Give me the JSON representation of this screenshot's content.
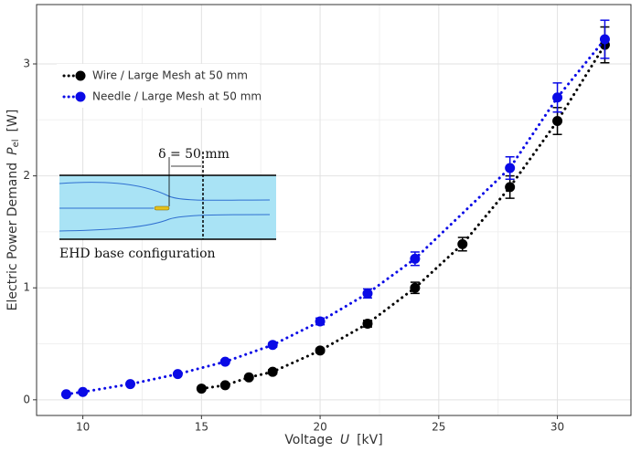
{
  "chart_data": {
    "type": "scatter",
    "xlabel": {
      "text": "Voltage",
      "symbol": "U",
      "unit": "[kV]"
    },
    "ylabel": {
      "text": "Electric Power Demand",
      "symbol": "P",
      "subscript": "el",
      "unit": "[W]"
    },
    "xlim": [
      8.05,
      33.1
    ],
    "ylim": [
      -0.14,
      3.53
    ],
    "xticks": [
      10,
      15,
      20,
      25,
      30
    ],
    "yticks": [
      0,
      1,
      2,
      3
    ],
    "grid": true,
    "legend": "upper-left",
    "series": [
      {
        "name": "Wire / Large Mesh at 50 mm",
        "color": "#000000",
        "x": [
          15,
          16,
          17,
          18,
          20,
          22,
          24,
          26,
          28,
          30,
          32
        ],
        "values": [
          0.1,
          0.13,
          0.2,
          0.25,
          0.44,
          0.68,
          1.0,
          1.39,
          1.9,
          2.49,
          3.17
        ],
        "errors": [
          0.01,
          0.01,
          0.015,
          0.02,
          0.02,
          0.03,
          0.05,
          0.06,
          0.1,
          0.12,
          0.16
        ]
      },
      {
        "name": "Needle / Large Mesh at 50 mm",
        "color": "#0a0ae6",
        "x": [
          9.3,
          10,
          12,
          14,
          16,
          18,
          20,
          22,
          24,
          28,
          30,
          32
        ],
        "values": [
          0.05,
          0.07,
          0.14,
          0.23,
          0.34,
          0.49,
          0.7,
          0.95,
          1.26,
          2.07,
          2.7,
          3.22
        ],
        "errors": [
          0.01,
          0.01,
          0.01,
          0.01,
          0.015,
          0.02,
          0.03,
          0.04,
          0.06,
          0.1,
          0.13,
          0.17
        ]
      }
    ],
    "annotations": [
      "δ = 50 mm",
      "EHD base configuration"
    ]
  }
}
